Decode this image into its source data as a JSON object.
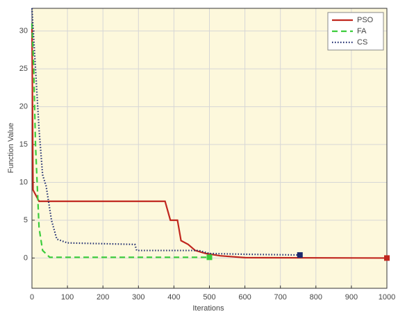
{
  "chart_data": {
    "type": "line",
    "xlabel": "Iterations",
    "ylabel": "Function Value",
    "xlim": [
      0,
      1000
    ],
    "ylim": [
      -4,
      33
    ],
    "xticks": [
      0,
      100,
      200,
      300,
      400,
      500,
      600,
      700,
      800,
      900,
      1000
    ],
    "yticks": [
      0,
      5,
      10,
      15,
      20,
      25,
      30
    ],
    "grid": true,
    "legend": "upper right",
    "series": [
      {
        "name": "PSO",
        "color": "#c0261e",
        "style": "solid",
        "x": [
          0,
          3,
          20,
          375,
          390,
          410,
          420,
          440,
          460,
          490,
          530,
          600,
          1000
        ],
        "values": [
          31,
          9,
          7.5,
          7.5,
          5,
          5,
          2.3,
          1.8,
          1,
          0.6,
          0.3,
          0.05,
          0
        ]
      },
      {
        "name": "FA",
        "color": "#3ccc3c",
        "style": "dashed",
        "x": [
          0,
          5,
          10,
          20,
          30,
          50,
          500
        ],
        "values": [
          31,
          25,
          15,
          4,
          1,
          0.1,
          0.1
        ]
      },
      {
        "name": "CS",
        "color": "#1c2a6e",
        "style": "dotted",
        "x": [
          0,
          10,
          20,
          30,
          40,
          55,
          70,
          100,
          290,
          295,
          470,
          500,
          600,
          755
        ],
        "values": [
          33,
          25,
          17,
          11,
          9.5,
          5,
          2.5,
          2,
          1.8,
          1,
          1,
          0.6,
          0.5,
          0.4
        ]
      }
    ]
  }
}
